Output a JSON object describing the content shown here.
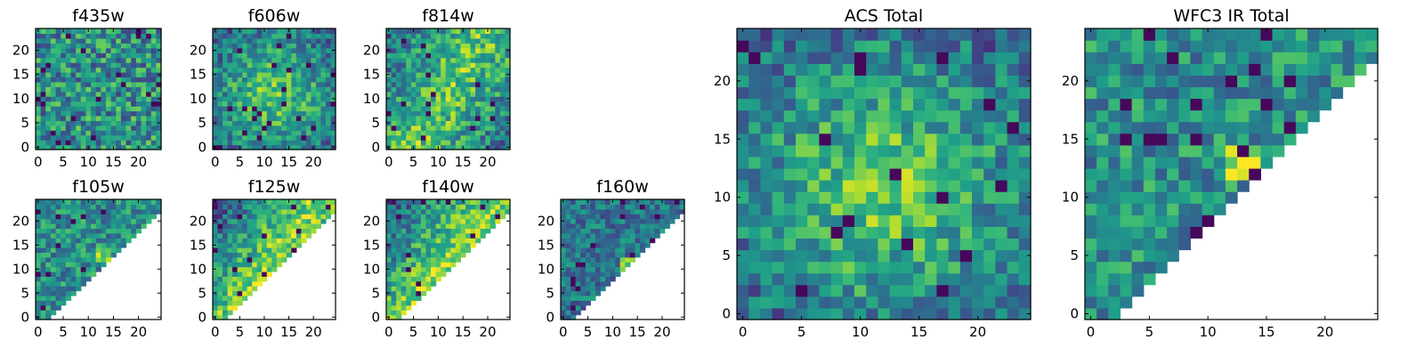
{
  "chart_data": [
    {
      "type": "heatmap",
      "title": "f435w",
      "xticks": [
        0,
        5,
        10,
        15,
        20
      ],
      "yticks": [
        0,
        5,
        10,
        15,
        20
      ],
      "xlim": [
        -0.5,
        24.5
      ],
      "ylim": [
        -0.5,
        24.5
      ],
      "grid": 25,
      "mask": "none",
      "brightness": "uniform",
      "cmap": "viridis"
    },
    {
      "type": "heatmap",
      "title": "f606w",
      "xticks": [
        0,
        5,
        10,
        15,
        20
      ],
      "yticks": [
        0,
        5,
        10,
        15,
        20
      ],
      "xlim": [
        -0.5,
        24.5
      ],
      "ylim": [
        -0.5,
        24.5
      ],
      "grid": 25,
      "mask": "none",
      "brightness": "central",
      "cmap": "viridis"
    },
    {
      "type": "heatmap",
      "title": "f814w",
      "xticks": [
        0,
        5,
        10,
        15,
        20
      ],
      "yticks": [
        0,
        5,
        10,
        15,
        20
      ],
      "xlim": [
        -0.5,
        24.5
      ],
      "ylim": [
        -0.5,
        24.5
      ],
      "grid": 25,
      "mask": "none",
      "brightness": "diagonal",
      "cmap": "viridis"
    },
    {
      "type": "heatmap",
      "title": "f105w",
      "xticks": [
        0,
        5,
        10,
        15,
        20
      ],
      "yticks": [
        0,
        5,
        10,
        15,
        20
      ],
      "xlim": [
        -0.5,
        24.5
      ],
      "ylim": [
        -0.5,
        24.5
      ],
      "grid": 25,
      "mask": "upper-left-triangle",
      "brightness": "hotspot",
      "cmap": "viridis"
    },
    {
      "type": "heatmap",
      "title": "f125w",
      "xticks": [
        0,
        5,
        10,
        15,
        20
      ],
      "yticks": [
        0,
        5,
        10,
        15,
        20
      ],
      "xlim": [
        -0.5,
        24.5
      ],
      "ylim": [
        -0.5,
        24.5
      ],
      "grid": 25,
      "mask": "upper-left-triangle",
      "brightness": "bright-diagonal",
      "cmap": "viridis"
    },
    {
      "type": "heatmap",
      "title": "f140w",
      "xticks": [
        0,
        5,
        10,
        15,
        20
      ],
      "yticks": [
        0,
        5,
        10,
        15,
        20
      ],
      "xlim": [
        -0.5,
        24.5
      ],
      "ylim": [
        -0.5,
        24.5
      ],
      "grid": 25,
      "mask": "upper-left-triangle",
      "brightness": "bright-diagonal",
      "cmap": "viridis"
    },
    {
      "type": "heatmap",
      "title": "f160w",
      "xticks": [
        0,
        5,
        10,
        15,
        20
      ],
      "yticks": [
        0,
        5,
        10,
        15,
        20
      ],
      "xlim": [
        -0.5,
        24.5
      ],
      "ylim": [
        -0.5,
        24.5
      ],
      "grid": 25,
      "mask": "upper-left-triangle",
      "brightness": "dim-hotspot",
      "cmap": "viridis"
    },
    {
      "type": "heatmap",
      "title": "ACS Total",
      "xticks": [
        0,
        5,
        10,
        15,
        20
      ],
      "yticks": [
        0,
        5,
        10,
        15,
        20
      ],
      "xlim": [
        -0.5,
        24.5
      ],
      "ylim": [
        -0.5,
        24.5
      ],
      "grid": 25,
      "mask": "none",
      "brightness": "central",
      "cmap": "viridis"
    },
    {
      "type": "heatmap",
      "title": "WFC3 IR Total",
      "xticks": [
        0,
        5,
        10,
        15,
        20
      ],
      "yticks": [
        0,
        5,
        10,
        15,
        20
      ],
      "xlim": [
        -0.5,
        24.5
      ],
      "ylim": [
        -0.5,
        24.5
      ],
      "grid": 25,
      "mask": "upper-left-triangle",
      "brightness": "hotspot",
      "cmap": "viridis"
    }
  ]
}
